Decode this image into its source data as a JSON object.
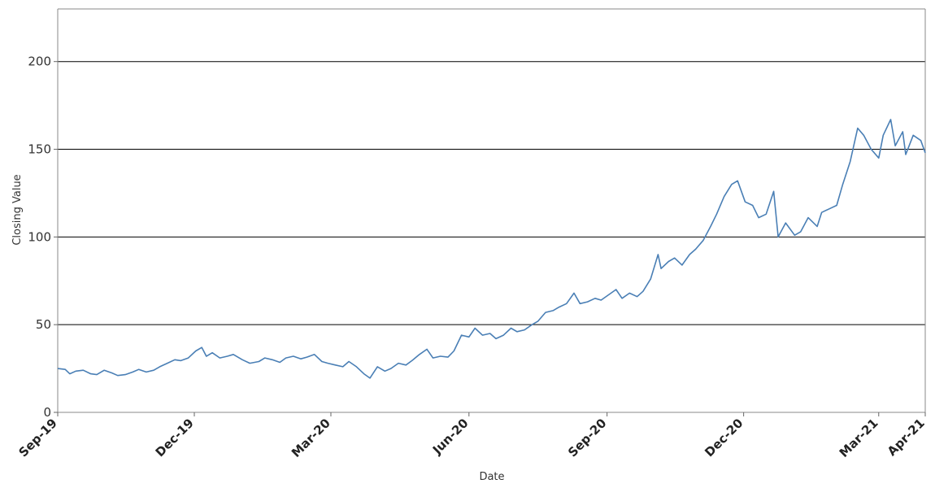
{
  "chart_data": {
    "type": "line",
    "title": "",
    "xlabel": "Date",
    "ylabel": "Closing Value",
    "x_range": [
      "2019-09-01",
      "2021-04-01"
    ],
    "ylim": [
      0,
      230
    ],
    "y_ticks": [
      0,
      50,
      100,
      150,
      200
    ],
    "x_ticks": [
      {
        "date": "2019-09-01",
        "label": "Sep-19"
      },
      {
        "date": "2019-12-01",
        "label": "Dec-19"
      },
      {
        "date": "2020-03-01",
        "label": "Mar-20"
      },
      {
        "date": "2020-06-01",
        "label": "Jun-20"
      },
      {
        "date": "2020-09-01",
        "label": "Sep-20"
      },
      {
        "date": "2020-12-01",
        "label": "Dec-20"
      },
      {
        "date": "2021-03-01",
        "label": "Mar-21"
      },
      {
        "date": "2021-04-01",
        "label": "Apr-21"
      }
    ],
    "grid": "horizontal",
    "series": [
      {
        "color": "#4a7fb5",
        "points": [
          [
            "2019-09-01",
            25
          ],
          [
            "2019-09-06",
            24.5
          ],
          [
            "2019-09-09",
            22
          ],
          [
            "2019-09-13",
            23.5
          ],
          [
            "2019-09-18",
            24
          ],
          [
            "2019-09-23",
            22
          ],
          [
            "2019-09-27",
            21.5
          ],
          [
            "2019-10-02",
            24
          ],
          [
            "2019-10-07",
            22.5
          ],
          [
            "2019-10-11",
            21
          ],
          [
            "2019-10-16",
            21.5
          ],
          [
            "2019-10-21",
            23
          ],
          [
            "2019-10-25",
            24.5
          ],
          [
            "2019-10-30",
            23
          ],
          [
            "2019-11-04",
            24
          ],
          [
            "2019-11-08",
            26
          ],
          [
            "2019-11-13",
            28
          ],
          [
            "2019-11-18",
            30
          ],
          [
            "2019-11-22",
            29.5
          ],
          [
            "2019-11-27",
            31
          ],
          [
            "2019-12-02",
            35
          ],
          [
            "2019-12-06",
            37
          ],
          [
            "2019-12-09",
            32
          ],
          [
            "2019-12-13",
            34
          ],
          [
            "2019-12-18",
            31
          ],
          [
            "2019-12-23",
            32
          ],
          [
            "2019-12-27",
            33
          ],
          [
            "2020-01-02",
            30
          ],
          [
            "2020-01-07",
            28
          ],
          [
            "2020-01-13",
            29
          ],
          [
            "2020-01-17",
            31
          ],
          [
            "2020-01-22",
            30
          ],
          [
            "2020-01-27",
            28.5
          ],
          [
            "2020-01-31",
            31
          ],
          [
            "2020-02-05",
            32
          ],
          [
            "2020-02-10",
            30.5
          ],
          [
            "2020-02-14",
            31.5
          ],
          [
            "2020-02-19",
            33
          ],
          [
            "2020-02-24",
            29
          ],
          [
            "2020-02-28",
            28
          ],
          [
            "2020-03-04",
            27
          ],
          [
            "2020-03-09",
            26
          ],
          [
            "2020-03-13",
            29
          ],
          [
            "2020-03-18",
            26
          ],
          [
            "2020-03-23",
            22
          ],
          [
            "2020-03-27",
            19.5
          ],
          [
            "2020-04-01",
            26
          ],
          [
            "2020-04-06",
            23.5
          ],
          [
            "2020-04-10",
            25
          ],
          [
            "2020-04-15",
            28
          ],
          [
            "2020-04-20",
            27
          ],
          [
            "2020-04-24",
            29.5
          ],
          [
            "2020-04-29",
            33
          ],
          [
            "2020-05-04",
            36
          ],
          [
            "2020-05-08",
            31
          ],
          [
            "2020-05-13",
            32
          ],
          [
            "2020-05-18",
            31.5
          ],
          [
            "2020-05-22",
            35
          ],
          [
            "2020-05-27",
            44
          ],
          [
            "2020-06-01",
            43
          ],
          [
            "2020-06-05",
            48
          ],
          [
            "2020-06-10",
            44
          ],
          [
            "2020-06-15",
            45
          ],
          [
            "2020-06-19",
            42
          ],
          [
            "2020-06-24",
            44
          ],
          [
            "2020-06-29",
            48
          ],
          [
            "2020-07-03",
            46
          ],
          [
            "2020-07-08",
            47
          ],
          [
            "2020-07-13",
            50
          ],
          [
            "2020-07-17",
            52
          ],
          [
            "2020-07-22",
            57
          ],
          [
            "2020-07-27",
            58
          ],
          [
            "2020-07-31",
            60
          ],
          [
            "2020-08-05",
            62
          ],
          [
            "2020-08-10",
            68
          ],
          [
            "2020-08-14",
            62
          ],
          [
            "2020-08-19",
            63
          ],
          [
            "2020-08-24",
            65
          ],
          [
            "2020-08-28",
            64
          ],
          [
            "2020-09-02",
            67
          ],
          [
            "2020-09-07",
            70
          ],
          [
            "2020-09-11",
            65
          ],
          [
            "2020-09-16",
            68
          ],
          [
            "2020-09-21",
            66
          ],
          [
            "2020-09-25",
            69
          ],
          [
            "2020-09-30",
            76
          ],
          [
            "2020-10-05",
            90
          ],
          [
            "2020-10-07",
            82
          ],
          [
            "2020-10-12",
            86
          ],
          [
            "2020-10-16",
            88
          ],
          [
            "2020-10-21",
            84
          ],
          [
            "2020-10-26",
            90
          ],
          [
            "2020-10-30",
            93
          ],
          [
            "2020-11-04",
            98
          ],
          [
            "2020-11-09",
            106
          ],
          [
            "2020-11-13",
            113
          ],
          [
            "2020-11-18",
            123
          ],
          [
            "2020-11-23",
            130
          ],
          [
            "2020-11-27",
            132
          ],
          [
            "2020-12-02",
            120
          ],
          [
            "2020-12-07",
            118
          ],
          [
            "2020-12-11",
            111
          ],
          [
            "2020-12-16",
            113
          ],
          [
            "2020-12-21",
            126
          ],
          [
            "2020-12-24",
            100
          ],
          [
            "2020-12-29",
            108
          ],
          [
            "2021-01-04",
            101
          ],
          [
            "2021-01-08",
            103
          ],
          [
            "2021-01-13",
            111
          ],
          [
            "2021-01-19",
            106
          ],
          [
            "2021-01-22",
            114
          ],
          [
            "2021-01-27",
            116
          ],
          [
            "2021-02-01",
            118
          ],
          [
            "2021-02-05",
            130
          ],
          [
            "2021-02-10",
            143
          ],
          [
            "2021-02-15",
            162
          ],
          [
            "2021-02-19",
            158
          ],
          [
            "2021-02-24",
            150
          ],
          [
            "2021-03-01",
            145
          ],
          [
            "2021-03-04",
            158
          ],
          [
            "2021-03-09",
            167
          ],
          [
            "2021-03-12",
            152
          ],
          [
            "2021-03-17",
            160
          ],
          [
            "2021-03-19",
            147
          ],
          [
            "2021-03-24",
            158
          ],
          [
            "2021-03-29",
            155
          ],
          [
            "2021-04-01",
            148
          ]
        ]
      }
    ]
  }
}
